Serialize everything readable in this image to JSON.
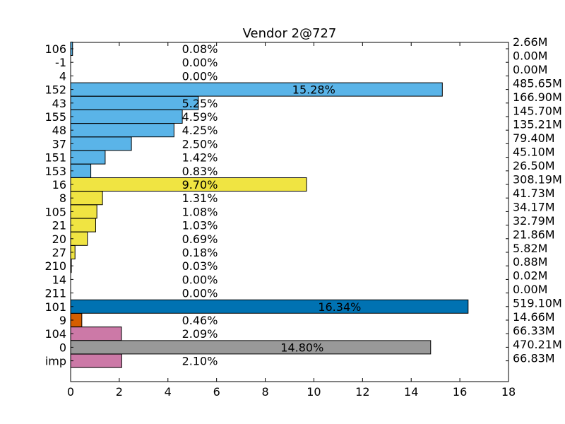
{
  "chart_data": {
    "type": "bar",
    "orientation": "horizontal",
    "title": "Vendor 2@727",
    "xlabel": "",
    "ylabel": "",
    "xlim": [
      0,
      18
    ],
    "x_ticks": [
      "0",
      "2",
      "4",
      "6",
      "8",
      "10",
      "12",
      "14",
      "16",
      "18"
    ],
    "grid": false,
    "legend": "none",
    "categories": [
      "106",
      "-1",
      "4",
      "152",
      "43",
      "155",
      "48",
      "37",
      "151",
      "153",
      "16",
      "8",
      "105",
      "21",
      "20",
      "27",
      "210",
      "14",
      "211",
      "101",
      "9",
      "104",
      "0",
      "imp"
    ],
    "values": [
      0.08,
      0.0,
      0.0,
      15.28,
      5.25,
      4.59,
      4.25,
      2.5,
      1.42,
      0.83,
      9.7,
      1.31,
      1.08,
      1.03,
      0.69,
      0.18,
      0.03,
      0.0,
      0.0,
      16.34,
      0.46,
      2.09,
      14.8,
      2.1
    ],
    "value_labels": [
      "0.08%",
      "0.00%",
      "0.00%",
      "15.28%",
      "5.25%",
      "4.59%",
      "4.25%",
      "2.50%",
      "1.42%",
      "0.83%",
      "9.70%",
      "1.31%",
      "1.08%",
      "1.03%",
      "0.69%",
      "0.18%",
      "0.03%",
      "0.00%",
      "0.00%",
      "16.34%",
      "0.46%",
      "2.09%",
      "14.80%",
      "2.10%"
    ],
    "right_labels": [
      "2.66M",
      "0.00M",
      "0.00M",
      "485.65M",
      "166.90M",
      "145.70M",
      "135.21M",
      "79.40M",
      "45.10M",
      "26.50M",
      "308.19M",
      "41.73M",
      "34.17M",
      "32.79M",
      "21.86M",
      "5.82M",
      "0.88M",
      "0.02M",
      "0.00M",
      "519.10M",
      "14.66M",
      "66.33M",
      "470.21M",
      "66.83M"
    ],
    "colors": [
      "#5ab4e8",
      "#5ab4e8",
      "#5ab4e8",
      "#5ab4e8",
      "#5ab4e8",
      "#5ab4e8",
      "#5ab4e8",
      "#5ab4e8",
      "#5ab4e8",
      "#5ab4e8",
      "#f0e442",
      "#f0e442",
      "#f0e442",
      "#f0e442",
      "#f0e442",
      "#f0e442",
      "#f0e442",
      "#f0e442",
      "#f0e442",
      "#0072b2",
      "#d55e00",
      "#cc79a7",
      "#999999",
      "#cc79a7"
    ]
  }
}
